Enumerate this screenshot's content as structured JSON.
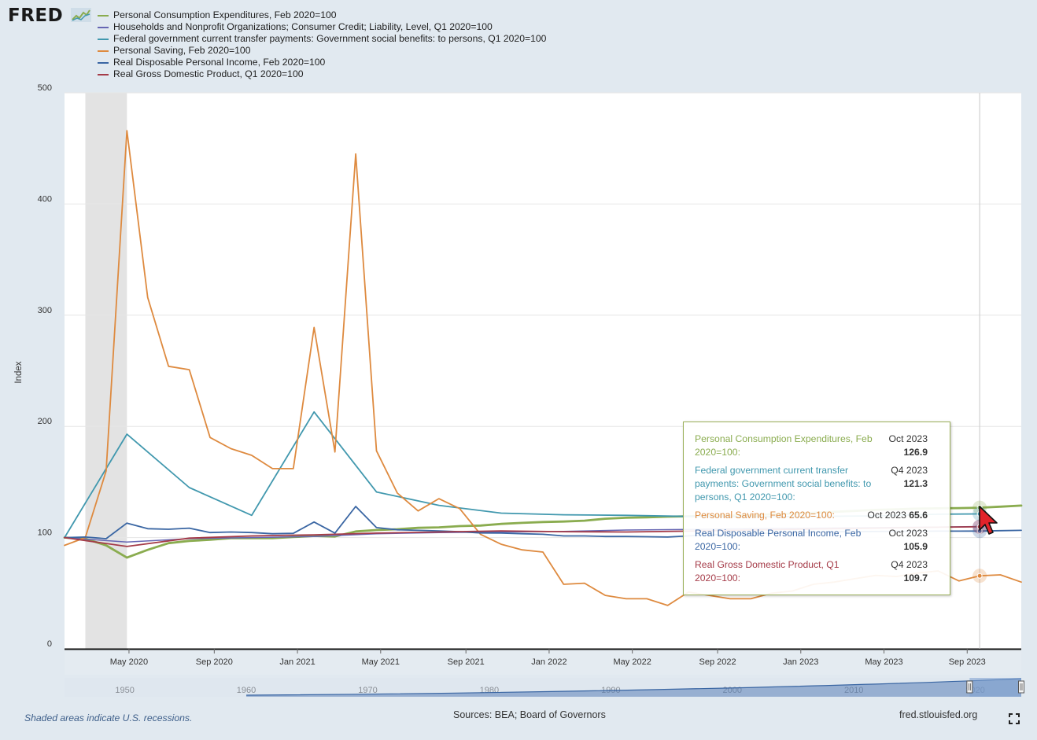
{
  "logo": {
    "text": "FRED"
  },
  "chart_data": {
    "type": "line",
    "ylabel": "Index",
    "ylim": [
      0,
      500
    ],
    "yticks": [
      0,
      100,
      200,
      300,
      400,
      500
    ],
    "xlim": [
      0,
      46
    ],
    "xticks": [
      {
        "x": 3.1,
        "label": "May 2020"
      },
      {
        "x": 7.2,
        "label": "Sep 2020"
      },
      {
        "x": 11.2,
        "label": "Jan 2021"
      },
      {
        "x": 15.2,
        "label": "May 2021"
      },
      {
        "x": 19.3,
        "label": "Sep 2021"
      },
      {
        "x": 23.3,
        "label": "Jan 2022"
      },
      {
        "x": 27.3,
        "label": "May 2022"
      },
      {
        "x": 31.4,
        "label": "Sep 2022"
      },
      {
        "x": 35.4,
        "label": "Jan 2023"
      },
      {
        "x": 39.4,
        "label": "May 2023"
      },
      {
        "x": 43.4,
        "label": "Sep 2023"
      }
    ],
    "recession": [
      1,
      3
    ],
    "hover_x": 44,
    "series": [
      {
        "name": "Personal Consumption Expenditures, Feb 2020=100",
        "color": "#8aac4f",
        "width": 2.8,
        "x": [
          0,
          1,
          2,
          3,
          4,
          5,
          6,
          7,
          8,
          9,
          10,
          11,
          12,
          13,
          14,
          15,
          16,
          17,
          18,
          19,
          20,
          21,
          22,
          23,
          24,
          25,
          26,
          27,
          28,
          29,
          30,
          31,
          32,
          33,
          34,
          35,
          36,
          37,
          38,
          39,
          40,
          41,
          42,
          43,
          44,
          45,
          46
        ],
        "values": [
          100,
          99,
          93,
          82,
          89,
          95,
          97,
          98,
          99.5,
          99.5,
          99.5,
          100.5,
          101.5,
          101,
          105.5,
          106.8,
          107.5,
          108.8,
          109.2,
          110.3,
          110.8,
          112.3,
          113.2,
          114,
          114.4,
          115.2,
          117,
          117.8,
          118.2,
          118.8,
          119.2,
          119.5,
          119.8,
          120.1,
          121,
          121.6,
          122.3,
          123.2,
          124,
          124.9,
          125.4,
          126,
          126.3,
          126.5,
          126.9,
          127.8,
          128.8
        ]
      },
      {
        "name": "Households and Nonprofit Organizations; Consumer Credit; Liability, Level, Q1 2020=100",
        "color": "#6666b3",
        "width": 1.5,
        "x": [
          0,
          3,
          6,
          9,
          12,
          15,
          18,
          21,
          24,
          27,
          30,
          33,
          36,
          39,
          42,
          44
        ],
        "values": [
          100,
          96,
          99,
          100,
          101,
          103.5,
          104.5,
          105,
          105.5,
          106.8,
          107.3,
          108,
          108.5,
          109,
          109.5,
          110
        ]
      },
      {
        "name": "Federal government current transfer payments: Government social benefits: to persons, Q1 2020=100",
        "color": "#4198ae",
        "width": 1.8,
        "x": [
          0,
          3,
          6,
          9,
          12,
          15,
          18,
          21,
          24,
          27,
          30,
          33,
          36,
          39,
          42,
          44
        ],
        "values": [
          100,
          193,
          145,
          120,
          213,
          141,
          129,
          122,
          120.5,
          120,
          119,
          118.7,
          119,
          119.5,
          121,
          121.3
        ]
      },
      {
        "name": "Personal Saving, Feb 2020=100",
        "color": "#de8a3f",
        "width": 1.8,
        "x": [
          0,
          1,
          2,
          3,
          4,
          5,
          6,
          7,
          8,
          9,
          10,
          11,
          12,
          13,
          14,
          15,
          16,
          17,
          18,
          19,
          20,
          21,
          22,
          23,
          24,
          25,
          26,
          27,
          28,
          29,
          30,
          31,
          32,
          33,
          34,
          35,
          36,
          37,
          38,
          39,
          40,
          41,
          42,
          43,
          44,
          45,
          46
        ],
        "values": [
          93,
          100,
          160,
          466,
          316,
          254,
          251,
          190,
          180,
          174,
          162,
          162,
          289,
          177,
          445,
          178,
          140,
          124,
          135,
          126,
          103,
          94,
          89,
          87,
          58,
          59,
          48,
          45,
          45,
          39,
          51,
          48,
          45,
          45,
          50,
          52,
          58,
          60,
          63,
          66,
          65,
          68,
          70,
          61,
          65.6,
          66.5,
          60
        ]
      },
      {
        "name": "Real Disposable Personal Income, Feb 2020=100",
        "color": "#3a66a3",
        "width": 1.8,
        "x": [
          0,
          1,
          2,
          3,
          4,
          5,
          6,
          7,
          8,
          9,
          10,
          11,
          12,
          13,
          14,
          15,
          16,
          17,
          18,
          19,
          20,
          21,
          22,
          23,
          24,
          25,
          26,
          27,
          28,
          29,
          30,
          31,
          32,
          33,
          34,
          35,
          36,
          37,
          38,
          39,
          40,
          41,
          42,
          43,
          44,
          45,
          46
        ],
        "values": [
          100,
          100.5,
          99,
          113,
          108,
          107.5,
          108.5,
          104.5,
          105,
          104.5,
          103.5,
          103.8,
          114,
          104,
          128,
          109,
          107,
          106.5,
          106,
          105.3,
          104.2,
          104,
          103.5,
          103,
          101.5,
          101.5,
          101,
          101,
          100.8,
          100.5,
          101.5,
          102.5,
          103,
          103.5,
          104,
          104.5,
          105,
          105.2,
          105.4,
          105.5,
          105.6,
          105.7,
          105.8,
          105.8,
          105.9,
          106.2,
          106.5
        ]
      },
      {
        "name": "Real Gross Domestic Product, Q1 2020=100",
        "color": "#a53b48",
        "width": 1.8,
        "x": [
          0,
          3,
          6,
          9,
          12,
          15,
          18,
          21,
          24,
          27,
          30,
          33,
          36,
          39,
          42,
          44
        ],
        "values": [
          100,
          92,
          99.5,
          101.5,
          102.5,
          104,
          105,
          106,
          105.3,
          105,
          105.8,
          106.8,
          107.7,
          108.5,
          109.3,
          109.7
        ]
      }
    ],
    "navigator": {
      "labels": [
        {
          "pos": 0.063,
          "label": "1950"
        },
        {
          "pos": 0.19,
          "label": "1960"
        },
        {
          "pos": 0.317,
          "label": "1970"
        },
        {
          "pos": 0.444,
          "label": "1980"
        },
        {
          "pos": 0.571,
          "label": "1990"
        },
        {
          "pos": 0.698,
          "label": "2000"
        },
        {
          "pos": 0.825,
          "label": "2010"
        },
        {
          "pos": 0.952,
          "label": "2020"
        }
      ],
      "start_year": 1960,
      "range": [
        0.946,
        1.0
      ]
    }
  },
  "tooltip": {
    "rows": [
      {
        "label": "Personal Consumption Expenditures, Feb 2020=100:",
        "date": "Oct 2023",
        "value": "126.9",
        "color": "#8aac4f"
      },
      {
        "label": "Federal government current transfer payments: Government social benefits: to persons, Q1 2020=100:",
        "date": "Q4 2023",
        "value": "121.3",
        "color": "#4198ae"
      },
      {
        "label": "Personal Saving, Feb 2020=100:",
        "date": "Oct 2023",
        "value": "65.6",
        "color": "#de8a3f",
        "inline": true
      },
      {
        "label": "Real Disposable Personal Income, Feb 2020=100:",
        "date": "Oct 2023",
        "value": "105.9",
        "color": "#3a66a3"
      },
      {
        "label": "Real Gross Domestic Product, Q1 2020=100:",
        "date": "Q4 2023",
        "value": "109.7",
        "color": "#a53b48"
      }
    ]
  },
  "footer": {
    "footnote": "Shaded areas indicate U.S. recessions.",
    "sources": "Sources: BEA; Board of Governors",
    "site": "fred.stlouisfed.org"
  }
}
